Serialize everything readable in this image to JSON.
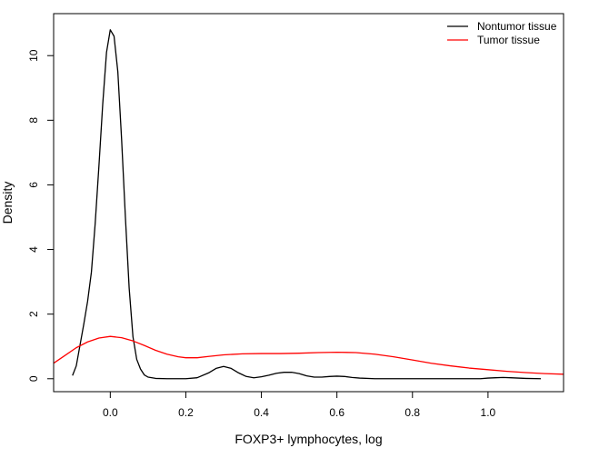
{
  "chart_data": {
    "type": "line",
    "xlabel": "FOXP3+ lymphocytes, log",
    "ylabel": "Density",
    "xlim": [
      -0.15,
      1.2
    ],
    "ylim": [
      -0.4,
      11.3
    ],
    "x_ticks": [
      0.0,
      0.2,
      0.4,
      0.6,
      0.8,
      1.0
    ],
    "x_tick_labels": [
      "0.0",
      "0.2",
      "0.4",
      "0.6",
      "0.8",
      "1.0"
    ],
    "y_ticks": [
      0,
      2,
      4,
      6,
      8,
      10
    ],
    "y_tick_labels": [
      "0",
      "2",
      "4",
      "6",
      "8",
      "10"
    ],
    "grid": false,
    "legend_position": "top-right",
    "series": [
      {
        "name": "Nontumor tissue",
        "color": "#000000",
        "points": [
          [
            -0.1,
            0.1
          ],
          [
            -0.09,
            0.4
          ],
          [
            -0.08,
            1.05
          ],
          [
            -0.07,
            1.7
          ],
          [
            -0.06,
            2.4
          ],
          [
            -0.05,
            3.3
          ],
          [
            -0.04,
            4.8
          ],
          [
            -0.03,
            6.6
          ],
          [
            -0.02,
            8.5
          ],
          [
            -0.01,
            10.1
          ],
          [
            0.0,
            10.8
          ],
          [
            0.01,
            10.6
          ],
          [
            0.02,
            9.5
          ],
          [
            0.03,
            7.4
          ],
          [
            0.04,
            5.0
          ],
          [
            0.05,
            2.8
          ],
          [
            0.06,
            1.3
          ],
          [
            0.07,
            0.6
          ],
          [
            0.08,
            0.3
          ],
          [
            0.09,
            0.12
          ],
          [
            0.1,
            0.05
          ],
          [
            0.12,
            0.01
          ],
          [
            0.15,
            0.0
          ],
          [
            0.2,
            0.0
          ],
          [
            0.23,
            0.03
          ],
          [
            0.26,
            0.18
          ],
          [
            0.28,
            0.32
          ],
          [
            0.3,
            0.38
          ],
          [
            0.32,
            0.32
          ],
          [
            0.34,
            0.18
          ],
          [
            0.36,
            0.07
          ],
          [
            0.38,
            0.03
          ],
          [
            0.4,
            0.06
          ],
          [
            0.42,
            0.11
          ],
          [
            0.44,
            0.17
          ],
          [
            0.46,
            0.2
          ],
          [
            0.48,
            0.2
          ],
          [
            0.5,
            0.16
          ],
          [
            0.52,
            0.09
          ],
          [
            0.54,
            0.05
          ],
          [
            0.56,
            0.05
          ],
          [
            0.58,
            0.07
          ],
          [
            0.6,
            0.08
          ],
          [
            0.62,
            0.07
          ],
          [
            0.64,
            0.04
          ],
          [
            0.66,
            0.02
          ],
          [
            0.7,
            0.0
          ],
          [
            0.8,
            0.0
          ],
          [
            0.9,
            0.0
          ],
          [
            0.98,
            0.0
          ],
          [
            1.0,
            0.02
          ],
          [
            1.02,
            0.03
          ],
          [
            1.04,
            0.04
          ],
          [
            1.06,
            0.03
          ],
          [
            1.08,
            0.02
          ],
          [
            1.1,
            0.01
          ],
          [
            1.14,
            0.0
          ]
        ]
      },
      {
        "name": "Tumor tissue",
        "color": "#ff0000",
        "points": [
          [
            -0.15,
            0.48
          ],
          [
            -0.12,
            0.72
          ],
          [
            -0.09,
            0.96
          ],
          [
            -0.06,
            1.14
          ],
          [
            -0.03,
            1.26
          ],
          [
            0.0,
            1.31
          ],
          [
            0.03,
            1.27
          ],
          [
            0.06,
            1.17
          ],
          [
            0.09,
            1.03
          ],
          [
            0.12,
            0.88
          ],
          [
            0.15,
            0.76
          ],
          [
            0.18,
            0.68
          ],
          [
            0.2,
            0.65
          ],
          [
            0.23,
            0.65
          ],
          [
            0.26,
            0.69
          ],
          [
            0.3,
            0.74
          ],
          [
            0.35,
            0.77
          ],
          [
            0.4,
            0.78
          ],
          [
            0.45,
            0.78
          ],
          [
            0.5,
            0.79
          ],
          [
            0.55,
            0.81
          ],
          [
            0.6,
            0.82
          ],
          [
            0.65,
            0.81
          ],
          [
            0.7,
            0.76
          ],
          [
            0.75,
            0.68
          ],
          [
            0.8,
            0.58
          ],
          [
            0.85,
            0.48
          ],
          [
            0.9,
            0.4
          ],
          [
            0.95,
            0.33
          ],
          [
            1.0,
            0.28
          ],
          [
            1.05,
            0.23
          ],
          [
            1.1,
            0.19
          ],
          [
            1.15,
            0.16
          ],
          [
            1.2,
            0.14
          ]
        ]
      }
    ]
  }
}
